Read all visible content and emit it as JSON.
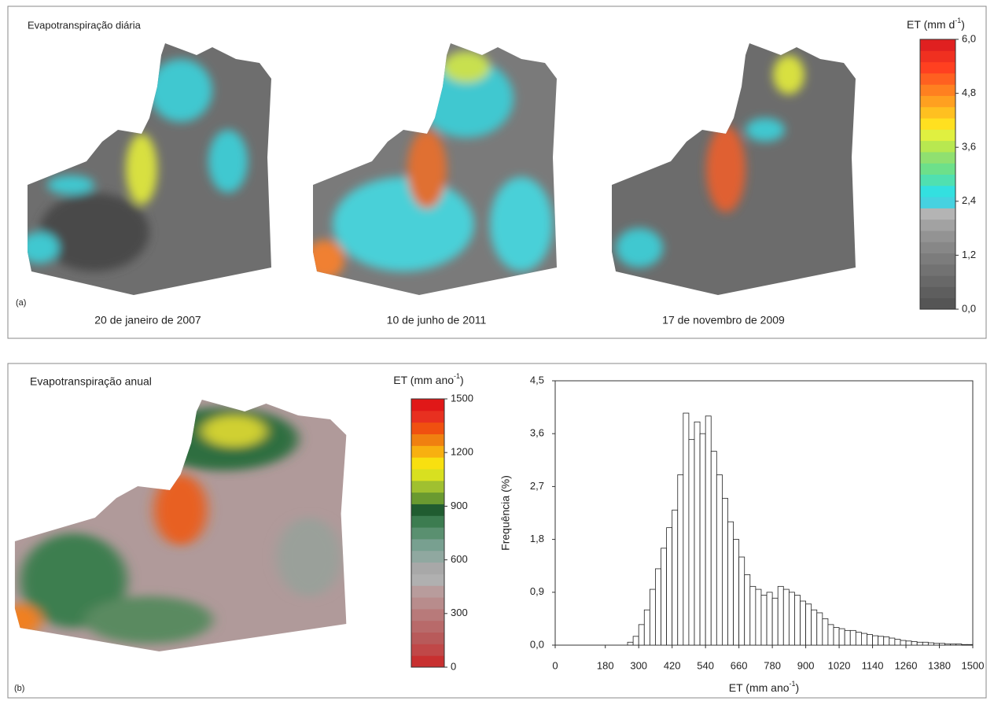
{
  "panel_a": {
    "title": "Evapotranspiração diária",
    "label": "(a)",
    "dates": [
      "20 de janeiro de 2007",
      "10 de junho de 2011",
      "17 de novembro de 2009"
    ]
  },
  "panel_b": {
    "title": "Evapotranspiração anual",
    "label": "(b)"
  },
  "chart_data": [
    {
      "type": "colorbar",
      "title": [
        "ET (mm d",
        "-1",
        ")"
      ],
      "ylim": [
        0,
        6
      ],
      "yticks": [
        {
          "value": 0,
          "label": "0,0"
        },
        {
          "value": 1.2,
          "label": "1,2"
        },
        {
          "value": 2.4,
          "label": "2,4"
        },
        {
          "value": 3.6,
          "label": "3,6"
        },
        {
          "value": 4.8,
          "label": "4,8"
        },
        {
          "value": 6,
          "label": "6,0"
        }
      ],
      "colors": [
        "#555555",
        "#5e5e5e",
        "#686868",
        "#727272",
        "#7c7c7c",
        "#878787",
        "#939393",
        "#a2a2a2",
        "#b4b4b4",
        "#46d2e0",
        "#33e0e0",
        "#50e0b0",
        "#6de08a",
        "#90e070",
        "#b8e850",
        "#e0f040",
        "#ffe020",
        "#ffc020",
        "#ffa020",
        "#ff8020",
        "#ff6020",
        "#ff4020",
        "#f03020",
        "#e02020"
      ]
    },
    {
      "type": "colorbar",
      "title": [
        "ET (mm ano",
        "-1",
        ")"
      ],
      "ylim": [
        0,
        1500
      ],
      "yticks": [
        0,
        300,
        600,
        900,
        1200,
        1500
      ],
      "colors": [
        "#c83030",
        "#c04848",
        "#b85a5a",
        "#b86a6a",
        "#b87a7a",
        "#b88c8c",
        "#b89c9c",
        "#b0b0b0",
        "#a8a8a8",
        "#90a8a0",
        "#78a090",
        "#5a9070",
        "#3c7c50",
        "#205c30",
        "#6a9a30",
        "#a0c030",
        "#d8e020",
        "#f8e010",
        "#f8b010",
        "#f08010",
        "#f05010",
        "#e83020",
        "#e01818"
      ]
    },
    {
      "type": "histogram",
      "xlabel": [
        "ET (mm ano",
        "-1",
        ")"
      ],
      "ylabel": "Frequência (%)",
      "color": "#ffffff",
      "xlim": [
        0,
        1500
      ],
      "ylim": [
        0,
        4.5
      ],
      "xticks": [
        0,
        180,
        300,
        420,
        540,
        660,
        780,
        900,
        1020,
        1140,
        1260,
        1380,
        1500
      ],
      "yticks": [
        {
          "value": 0,
          "label": "0,0"
        },
        {
          "value": 0.9,
          "label": "0,9"
        },
        {
          "value": 1.8,
          "label": "1,8"
        },
        {
          "value": 2.7,
          "label": "2,7"
        },
        {
          "value": 3.6,
          "label": "3,6"
        },
        {
          "value": 4.5,
          "label": "4,5"
        }
      ],
      "bins": [
        260,
        280,
        300,
        320,
        340,
        360,
        380,
        400,
        420,
        440,
        460,
        480,
        500,
        520,
        540,
        560,
        580,
        600,
        620,
        640,
        660,
        680,
        700,
        720,
        740,
        760,
        780,
        800,
        820,
        840,
        860,
        880,
        900,
        920,
        940,
        960,
        980,
        1000,
        1020,
        1040,
        1060,
        1080,
        1100,
        1120,
        1140,
        1160,
        1180,
        1200,
        1220,
        1240,
        1260,
        1280,
        1300,
        1320,
        1340,
        1360,
        1380,
        1400,
        1420,
        1440,
        1460,
        1480,
        1500
      ],
      "values": [
        0.05,
        0.15,
        0.35,
        0.6,
        0.95,
        1.3,
        1.65,
        2.0,
        2.3,
        2.9,
        3.95,
        3.5,
        3.8,
        3.6,
        3.9,
        3.3,
        2.9,
        2.5,
        2.1,
        1.8,
        1.5,
        1.2,
        1.0,
        0.95,
        0.85,
        0.9,
        0.8,
        1.0,
        0.95,
        0.9,
        0.85,
        0.75,
        0.7,
        0.6,
        0.55,
        0.45,
        0.35,
        0.3,
        0.28,
        0.25,
        0.25,
        0.22,
        0.2,
        0.18,
        0.16,
        0.15,
        0.14,
        0.12,
        0.1,
        0.08,
        0.07,
        0.06,
        0.05,
        0.05,
        0.04,
        0.03,
        0.03,
        0.02,
        0.02,
        0.02,
        0.01,
        0.01
      ]
    }
  ]
}
